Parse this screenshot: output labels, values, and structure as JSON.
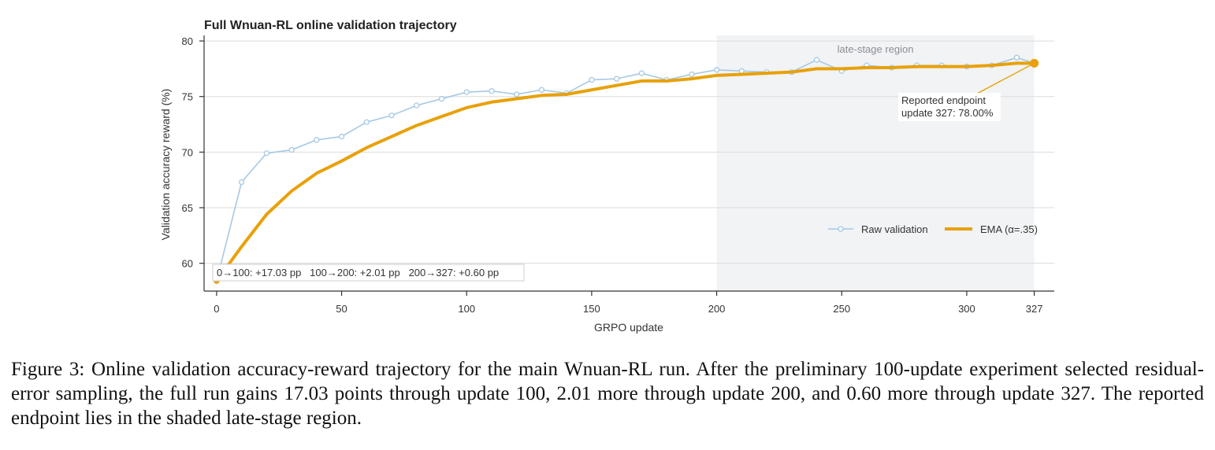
{
  "chart_data": {
    "type": "line",
    "title": "Full Wnuan-RL online validation trajectory",
    "xlabel": "GRPO update",
    "ylabel": "Validation accuracy reward (%)",
    "xlim": [
      -5,
      335
    ],
    "ylim": [
      57.5,
      80.5
    ],
    "xticks": [
      0,
      50,
      100,
      150,
      200,
      250,
      300,
      327
    ],
    "yticks": [
      60,
      65,
      70,
      75,
      80
    ],
    "grid": "horizontal",
    "legend_position": "right",
    "shaded_region": {
      "x": [
        200,
        327
      ],
      "label": "late-stage region"
    },
    "series": [
      {
        "name": "Raw validation",
        "color": "#a6c8e4",
        "marker": "circle",
        "x": [
          0,
          10,
          20,
          30,
          40,
          50,
          60,
          70,
          80,
          90,
          100,
          110,
          120,
          130,
          140,
          150,
          160,
          170,
          180,
          190,
          200,
          210,
          220,
          230,
          240,
          250,
          260,
          270,
          280,
          290,
          300,
          310,
          320,
          327
        ],
        "y": [
          58.4,
          67.3,
          69.9,
          70.2,
          71.1,
          71.4,
          72.7,
          73.3,
          74.2,
          74.8,
          75.4,
          75.5,
          75.2,
          75.6,
          75.3,
          76.5,
          76.6,
          77.1,
          76.5,
          77.0,
          77.4,
          77.3,
          77.2,
          77.2,
          78.3,
          77.3,
          77.8,
          77.6,
          77.8,
          77.8,
          77.7,
          77.8,
          78.5,
          78.0
        ]
      },
      {
        "name": "EMA (α=.35)",
        "color": "#e8a10a",
        "x": [
          0,
          10,
          20,
          30,
          40,
          50,
          60,
          70,
          80,
          90,
          100,
          110,
          120,
          130,
          140,
          150,
          160,
          170,
          180,
          190,
          200,
          210,
          220,
          230,
          240,
          250,
          260,
          270,
          280,
          290,
          300,
          310,
          320,
          327
        ],
        "y": [
          58.4,
          61.5,
          64.4,
          66.5,
          68.1,
          69.2,
          70.4,
          71.4,
          72.4,
          73.2,
          74.0,
          74.5,
          74.8,
          75.1,
          75.2,
          75.6,
          76.0,
          76.4,
          76.4,
          76.6,
          76.9,
          77.0,
          77.1,
          77.2,
          77.5,
          77.5,
          77.6,
          77.6,
          77.7,
          77.7,
          77.7,
          77.8,
          78.0,
          78.0
        ]
      }
    ],
    "endpoint": {
      "x": 327,
      "y": 78.0,
      "color": "#e8a10a",
      "label_line1": "Reported endpoint",
      "label_line2": "update 327: 78.00%"
    },
    "gains_box": "0→100: +17.03 pp   100→200: +2.01 pp   200→327: +0.60 pp"
  },
  "caption": "Figure 3: Online validation accuracy-reward trajectory for the main Wnuan-RL run. After the preliminary 100-update experiment selected residual-error sampling, the full run gains 17.03 points through update 100, 2.01 more through update 200, and 0.60 more through update 327. The reported endpoint lies in the shaded late-stage region."
}
